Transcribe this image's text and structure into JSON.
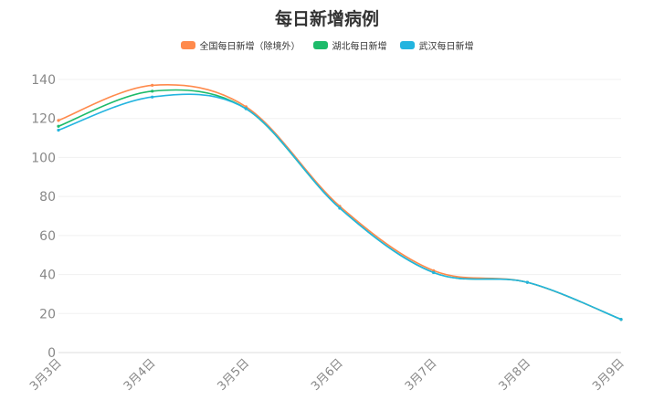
{
  "chart_data": {
    "type": "line",
    "title": "每日新增病例",
    "xlabel": "",
    "ylabel": "",
    "categories": [
      "3月3日",
      "3月4日",
      "3月5日",
      "3月6日",
      "3月7日",
      "3月8日",
      "3月9日"
    ],
    "ylim": [
      0,
      140
    ],
    "yticks": [
      0,
      20,
      40,
      60,
      80,
      100,
      120,
      140
    ],
    "grid": true,
    "smooth": true,
    "legend_position": "top-center",
    "series": [
      {
        "name": "全国每日新增（除境外）",
        "color": "#ff8a4c",
        "values": [
          119,
          137,
          126,
          75,
          42,
          36,
          17
        ]
      },
      {
        "name": "湖北每日新增",
        "color": "#1dbb6a",
        "values": [
          116,
          134,
          125,
          74,
          41,
          36,
          17
        ]
      },
      {
        "name": "武汉每日新增",
        "color": "#23b4df",
        "values": [
          114,
          131,
          125,
          74,
          41,
          36,
          17
        ]
      }
    ]
  }
}
